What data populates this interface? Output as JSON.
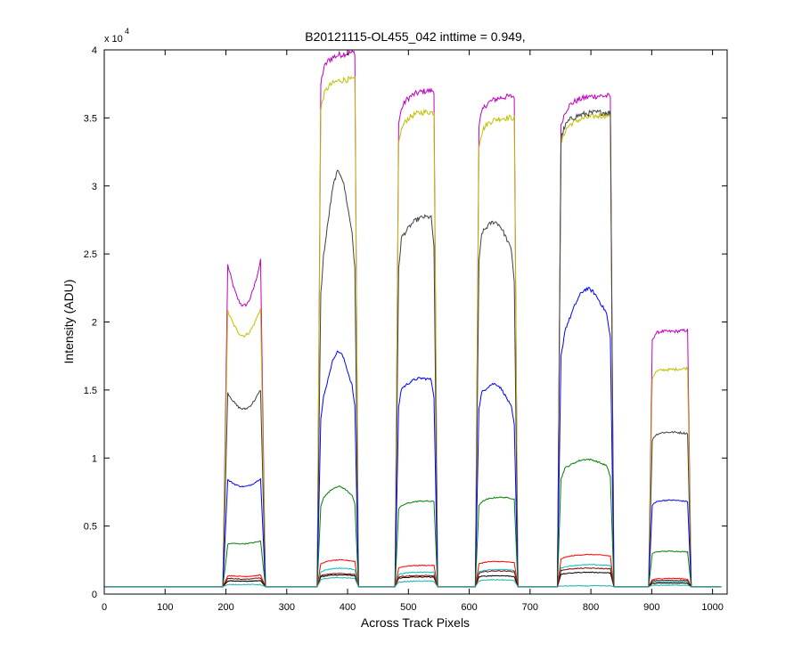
{
  "chart_data": {
    "type": "line",
    "title": "B20121115-OL455_042 inttime = 0.949,",
    "xlabel": "Across Track Pixels",
    "ylabel": "Intensity (ADU)",
    "y_exponent_label": "x 10",
    "y_exponent_power": "4",
    "xlim": [
      0,
      1024
    ],
    "ylim": [
      0,
      40000
    ],
    "x_ticks": [
      0,
      100,
      200,
      300,
      400,
      500,
      600,
      700,
      800,
      900,
      1000
    ],
    "y_ticks": [
      0,
      5000,
      10000,
      15000,
      20000,
      25000,
      30000,
      35000,
      40000
    ],
    "x_tick_labels": [
      "0",
      "100",
      "200",
      "300",
      "400",
      "500",
      "600",
      "700",
      "800",
      "900",
      "1000"
    ],
    "y_tick_labels": [
      "0",
      "0.5",
      "1",
      "1.5",
      "2",
      "2.5",
      "3",
      "3.5",
      "4"
    ],
    "grid": false,
    "baseline": 550,
    "regions": [
      {
        "start": 195,
        "end": 265,
        "rise": 8
      },
      {
        "start": 350,
        "end": 418,
        "rise": 6
      },
      {
        "start": 478,
        "end": 548,
        "rise": 6
      },
      {
        "start": 610,
        "end": 680,
        "rise": 6
      },
      {
        "start": 745,
        "end": 838,
        "rise": 6
      },
      {
        "start": 895,
        "end": 965,
        "rise": 6
      }
    ],
    "series": [
      {
        "color": "#bf00bf",
        "profiles": [
          {
            "shape": "dip",
            "left": 24200,
            "mid": 21200,
            "right": 24500
          },
          {
            "shape": "flat",
            "left": 39000,
            "mid": 39600,
            "right": 39800
          },
          {
            "shape": "flat",
            "left": 36000,
            "mid": 36800,
            "right": 37000
          },
          {
            "shape": "flat",
            "left": 35800,
            "mid": 36400,
            "right": 36600
          },
          {
            "shape": "flat",
            "left": 35800,
            "mid": 36500,
            "right": 36600
          },
          {
            "shape": "flat",
            "left": 19400,
            "mid": 19300,
            "right": 19400
          }
        ]
      },
      {
        "color": "#bfbf00",
        "profiles": [
          {
            "shape": "dip",
            "left": 20800,
            "mid": 19000,
            "right": 21000
          },
          {
            "shape": "flat",
            "left": 37000,
            "mid": 37700,
            "right": 37800
          },
          {
            "shape": "flat",
            "left": 34500,
            "mid": 35300,
            "right": 35400
          },
          {
            "shape": "flat",
            "left": 34300,
            "mid": 34900,
            "right": 35000
          },
          {
            "shape": "flat",
            "left": 34400,
            "mid": 35000,
            "right": 35200
          },
          {
            "shape": "flat",
            "left": 16500,
            "mid": 16500,
            "right": 16600
          }
        ]
      },
      {
        "color": "#404040",
        "profiles": [
          {
            "shape": "dip",
            "left": 14800,
            "mid": 13600,
            "right": 15000
          },
          {
            "shape": "peak",
            "left": 24000,
            "mid": 31000,
            "right": 26000
          },
          {
            "shape": "peak",
            "left": 26000,
            "mid": 27500,
            "right": 27800
          },
          {
            "shape": "peak",
            "left": 26500,
            "mid": 27300,
            "right": 25000
          },
          {
            "shape": "flat",
            "left": 34800,
            "mid": 35300,
            "right": 35400
          },
          {
            "shape": "flat",
            "left": 11800,
            "mid": 11900,
            "right": 11800
          }
        ]
      },
      {
        "color": "#0000ff",
        "profiles": [
          {
            "shape": "dip",
            "left": 8400,
            "mid": 7900,
            "right": 8500
          },
          {
            "shape": "peak",
            "left": 14000,
            "mid": 17800,
            "right": 15000
          },
          {
            "shape": "peak",
            "left": 15000,
            "mid": 15800,
            "right": 15800
          },
          {
            "shape": "peak",
            "left": 14800,
            "mid": 15400,
            "right": 13500
          },
          {
            "shape": "peak",
            "left": 19000,
            "mid": 22400,
            "right": 20500
          },
          {
            "shape": "flat",
            "left": 6800,
            "mid": 6900,
            "right": 6800
          }
        ]
      },
      {
        "color": "#008000",
        "profiles": [
          {
            "shape": "flat",
            "left": 3800,
            "mid": 3700,
            "right": 3900
          },
          {
            "shape": "peak",
            "left": 7000,
            "mid": 7900,
            "right": 7200
          },
          {
            "shape": "flat",
            "left": 6500,
            "mid": 6800,
            "right": 6800
          },
          {
            "shape": "flat",
            "left": 6800,
            "mid": 7100,
            "right": 7000
          },
          {
            "shape": "peak",
            "left": 9200,
            "mid": 9900,
            "right": 9400
          },
          {
            "shape": "flat",
            "left": 3100,
            "mid": 3150,
            "right": 3100
          }
        ]
      },
      {
        "color": "#ff0000",
        "profiles": [
          {
            "shape": "flat",
            "left": 1400,
            "mid": 1300,
            "right": 1400
          },
          {
            "shape": "flat",
            "left": 2300,
            "mid": 2500,
            "right": 2400
          },
          {
            "shape": "flat",
            "left": 2000,
            "mid": 2100,
            "right": 2100
          },
          {
            "shape": "flat",
            "left": 2300,
            "mid": 2400,
            "right": 2300
          },
          {
            "shape": "flat",
            "left": 2700,
            "mid": 2900,
            "right": 2800
          },
          {
            "shape": "flat",
            "left": 1100,
            "mid": 1150,
            "right": 1100
          }
        ]
      },
      {
        "color": "#00bfbf",
        "profiles": [
          {
            "shape": "flat",
            "left": 1000,
            "mid": 950,
            "right": 1000
          },
          {
            "shape": "flat",
            "left": 1700,
            "mid": 1900,
            "right": 1800
          },
          {
            "shape": "flat",
            "left": 1500,
            "mid": 1600,
            "right": 1600
          },
          {
            "shape": "flat",
            "left": 1700,
            "mid": 1800,
            "right": 1750
          },
          {
            "shape": "flat",
            "left": 2000,
            "mid": 2150,
            "right": 2100
          },
          {
            "shape": "flat",
            "left": 900,
            "mid": 900,
            "right": 900
          }
        ]
      },
      {
        "color": "#000000",
        "profiles": [
          {
            "shape": "flat",
            "left": 1000,
            "mid": 950,
            "right": 1000
          },
          {
            "shape": "flat",
            "left": 1300,
            "mid": 1400,
            "right": 1350
          },
          {
            "shape": "flat",
            "left": 1200,
            "mid": 1250,
            "right": 1250
          },
          {
            "shape": "flat",
            "left": 1300,
            "mid": 1350,
            "right": 1300
          },
          {
            "shape": "flat",
            "left": 1500,
            "mid": 1600,
            "right": 1550
          },
          {
            "shape": "flat",
            "left": 800,
            "mid": 800,
            "right": 800
          }
        ]
      },
      {
        "color": "#8b0000",
        "profiles": [
          {
            "shape": "flat",
            "left": 1200,
            "mid": 1100,
            "right": 1200
          },
          {
            "shape": "flat",
            "left": 1400,
            "mid": 1500,
            "right": 1450
          },
          {
            "shape": "flat",
            "left": 1300,
            "mid": 1350,
            "right": 1350
          },
          {
            "shape": "flat",
            "left": 1600,
            "mid": 1700,
            "right": 1650
          },
          {
            "shape": "flat",
            "left": 1800,
            "mid": 1900,
            "right": 1850
          },
          {
            "shape": "flat",
            "left": 1000,
            "mid": 1000,
            "right": 1000
          }
        ]
      },
      {
        "color": "#20b2aa",
        "profiles": [
          {
            "shape": "flat",
            "left": 700,
            "mid": 700,
            "right": 700
          },
          {
            "shape": "flat",
            "left": 1100,
            "mid": 1200,
            "right": 1150
          },
          {
            "shape": "flat",
            "left": 900,
            "mid": 950,
            "right": 950
          },
          {
            "shape": "flat",
            "left": 1000,
            "mid": 1050,
            "right": 1000
          },
          {
            "shape": "flat",
            "left": 600,
            "mid": 600,
            "right": 600
          },
          {
            "shape": "flat",
            "left": 650,
            "mid": 650,
            "right": 650
          }
        ]
      }
    ]
  }
}
